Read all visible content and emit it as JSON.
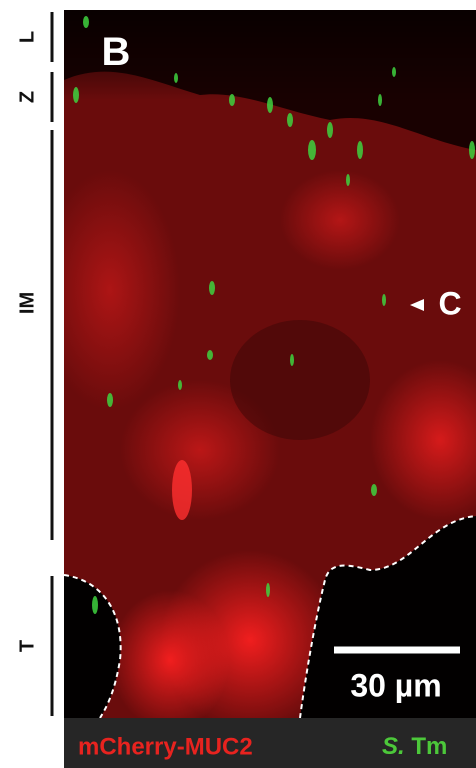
{
  "panel_label": "B",
  "annotation": "C",
  "scale_bar": "30 µm",
  "legend": {
    "left": "mCherry-MUC2",
    "right_italic": "S.",
    "right": "Tm"
  },
  "layers": [
    {
      "label": "L"
    },
    {
      "label": "Z"
    },
    {
      "label": "IM"
    },
    {
      "label": "T"
    }
  ]
}
